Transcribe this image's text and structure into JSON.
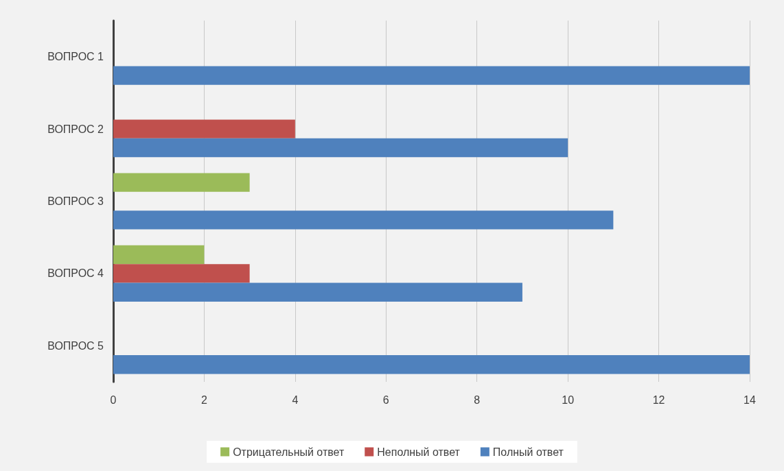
{
  "chart_data": {
    "type": "bar",
    "orientation": "horizontal",
    "categories": [
      "ВОПРОС 1",
      "ВОПРОС 2",
      "ВОПРОС 3",
      "ВОПРОС 4",
      "ВОПРОС 5"
    ],
    "series": [
      {
        "name": "Отрицательный ответ",
        "color": "#9bbb59",
        "values": [
          0,
          0,
          3,
          2,
          0
        ]
      },
      {
        "name": "Неполный ответ",
        "color": "#c0504d",
        "values": [
          0,
          4,
          0,
          3,
          0
        ]
      },
      {
        "name": "Полный ответ",
        "color": "#4f81bd",
        "values": [
          14,
          10,
          11,
          9,
          14
        ]
      }
    ],
    "xlim": [
      0,
      14
    ],
    "xticks": [
      0,
      2,
      4,
      6,
      8,
      10,
      12,
      14
    ],
    "grid": "x",
    "legend": "bottom"
  }
}
